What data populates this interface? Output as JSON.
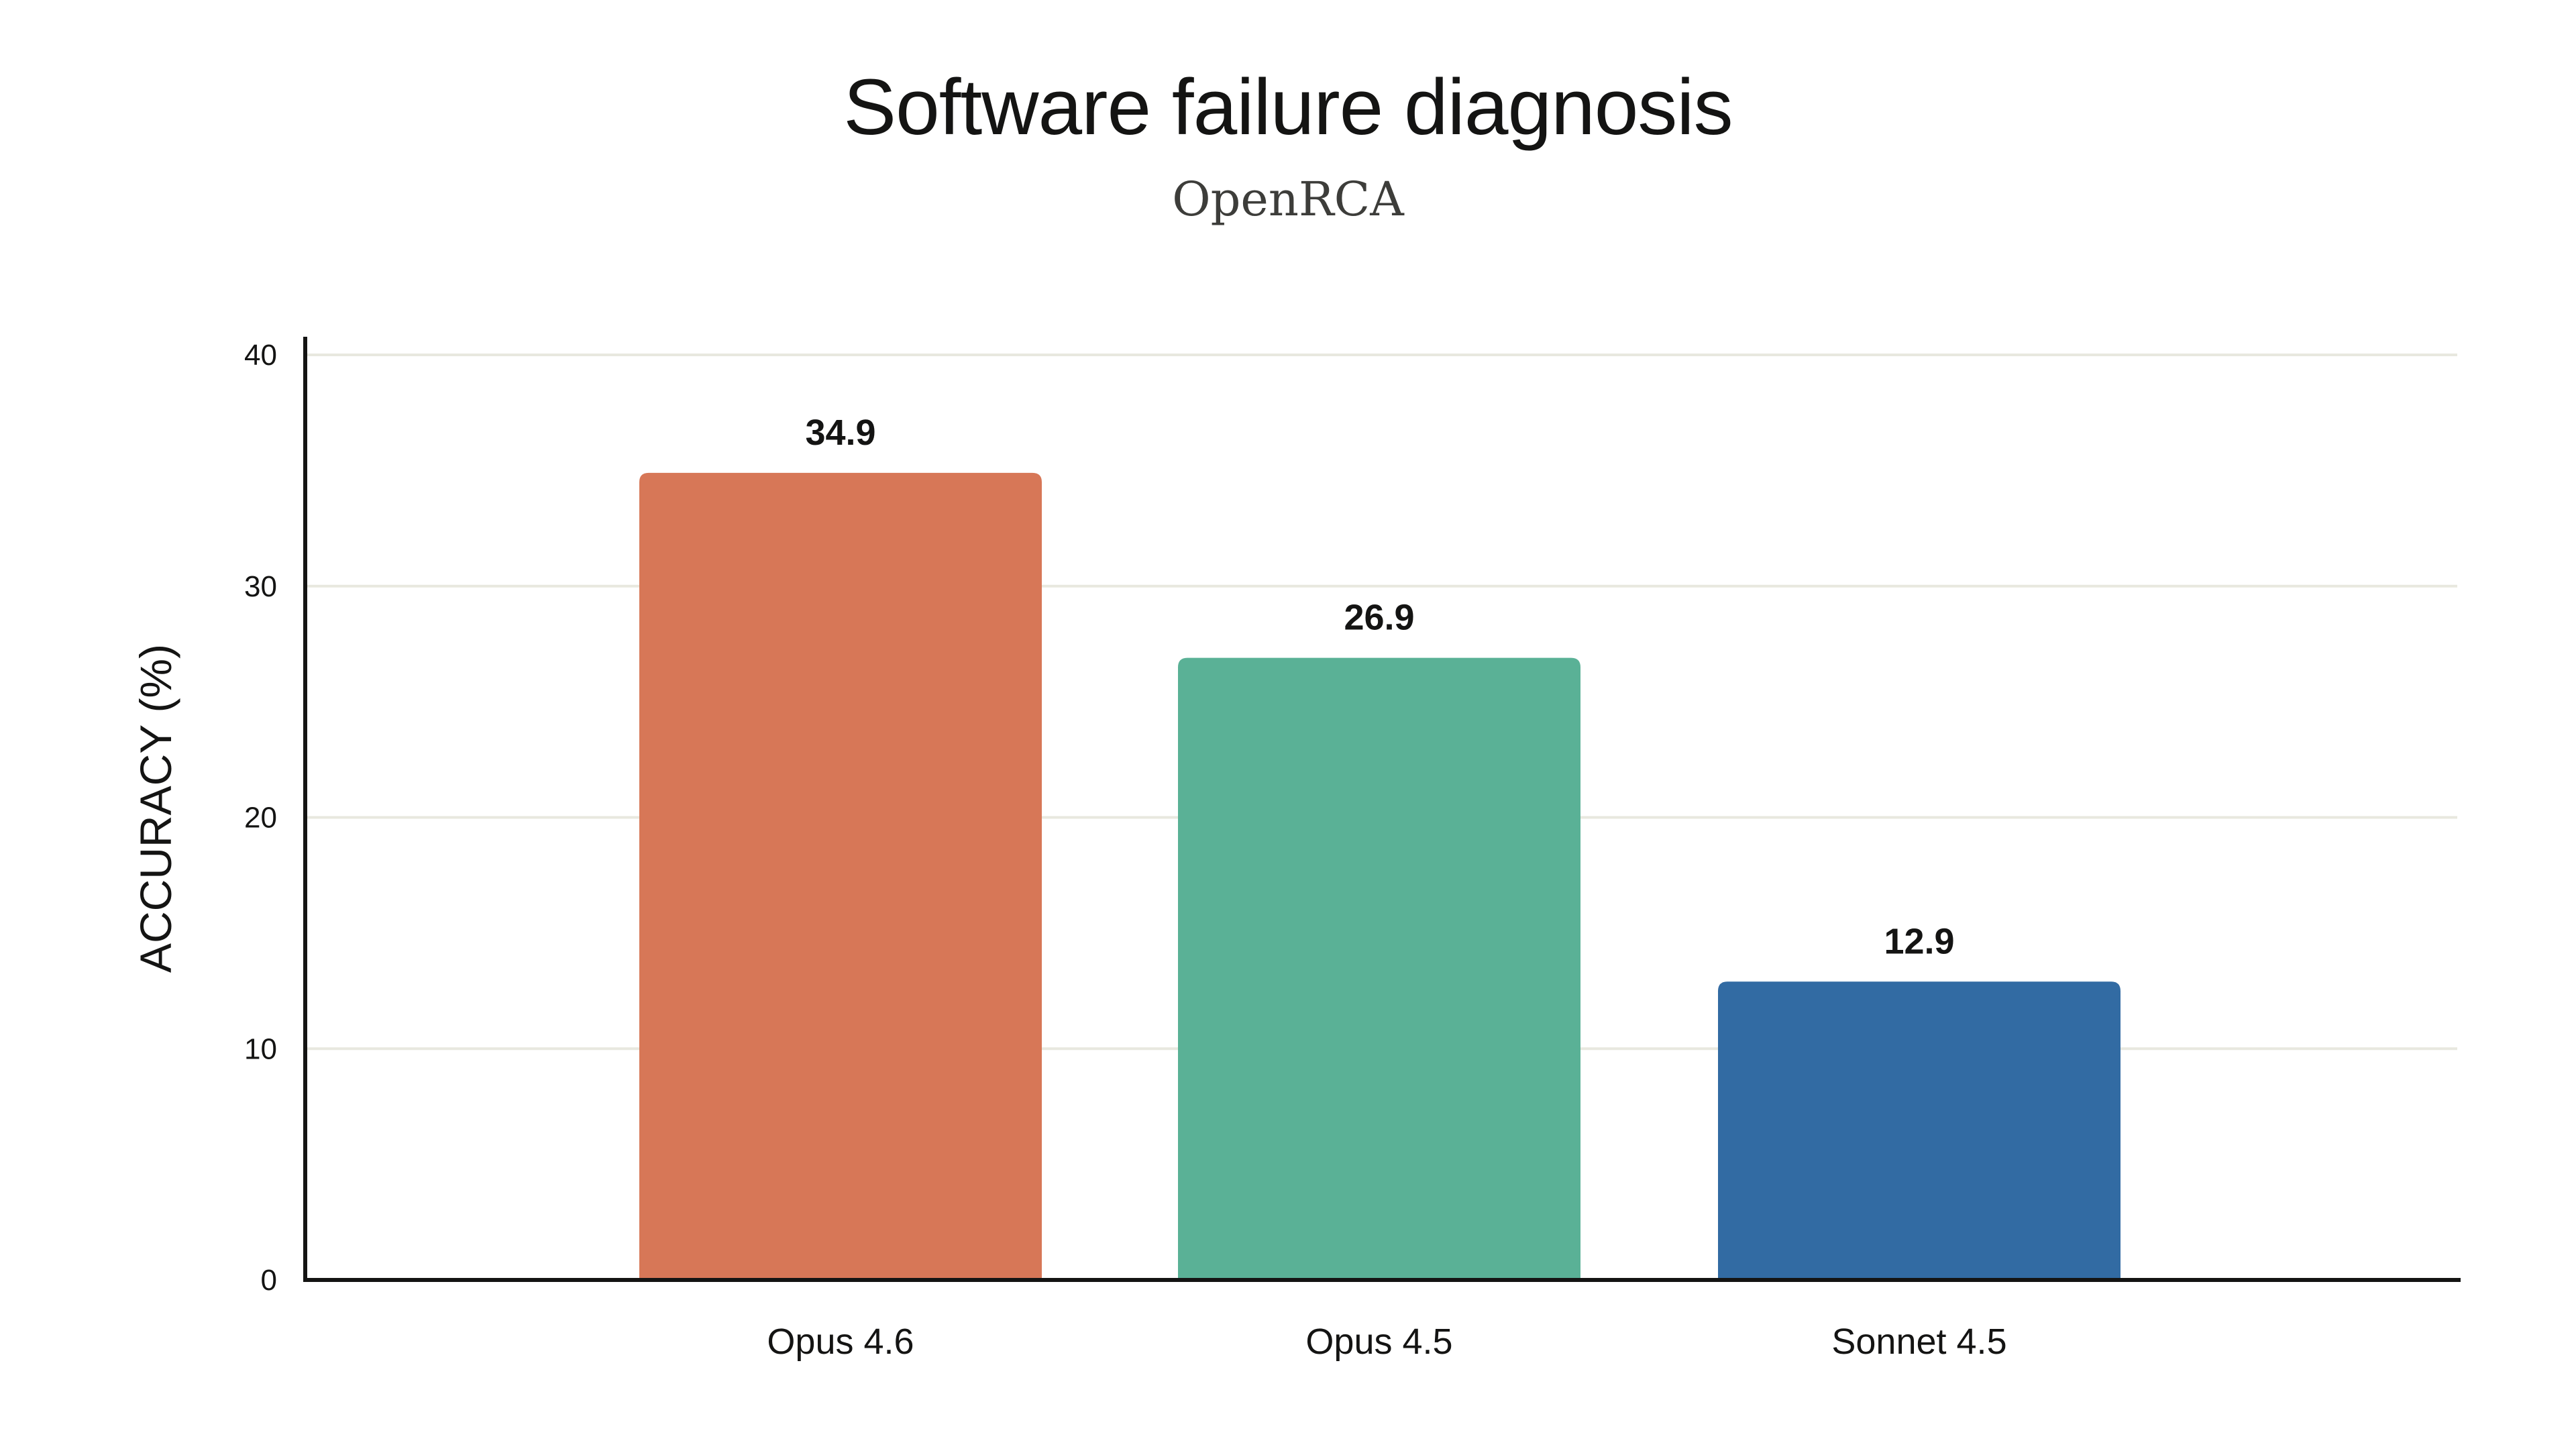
{
  "chart_data": {
    "type": "bar",
    "title": "Software failure diagnosis",
    "subtitle": "OpenRCA",
    "xlabel": "",
    "ylabel": "ACCURACY (%)",
    "categories": [
      "Opus 4.6",
      "Opus 4.5",
      "Sonnet 4.5"
    ],
    "values": [
      34.9,
      26.9,
      12.9
    ],
    "value_labels": [
      "34.9",
      "26.9",
      "12.9"
    ],
    "colors": [
      "#D77757",
      "#5AB196",
      "#326BA3"
    ],
    "ylim": [
      0,
      40
    ],
    "yticks": [
      0,
      10,
      20,
      30,
      40
    ],
    "grid": true,
    "legend": "none"
  }
}
